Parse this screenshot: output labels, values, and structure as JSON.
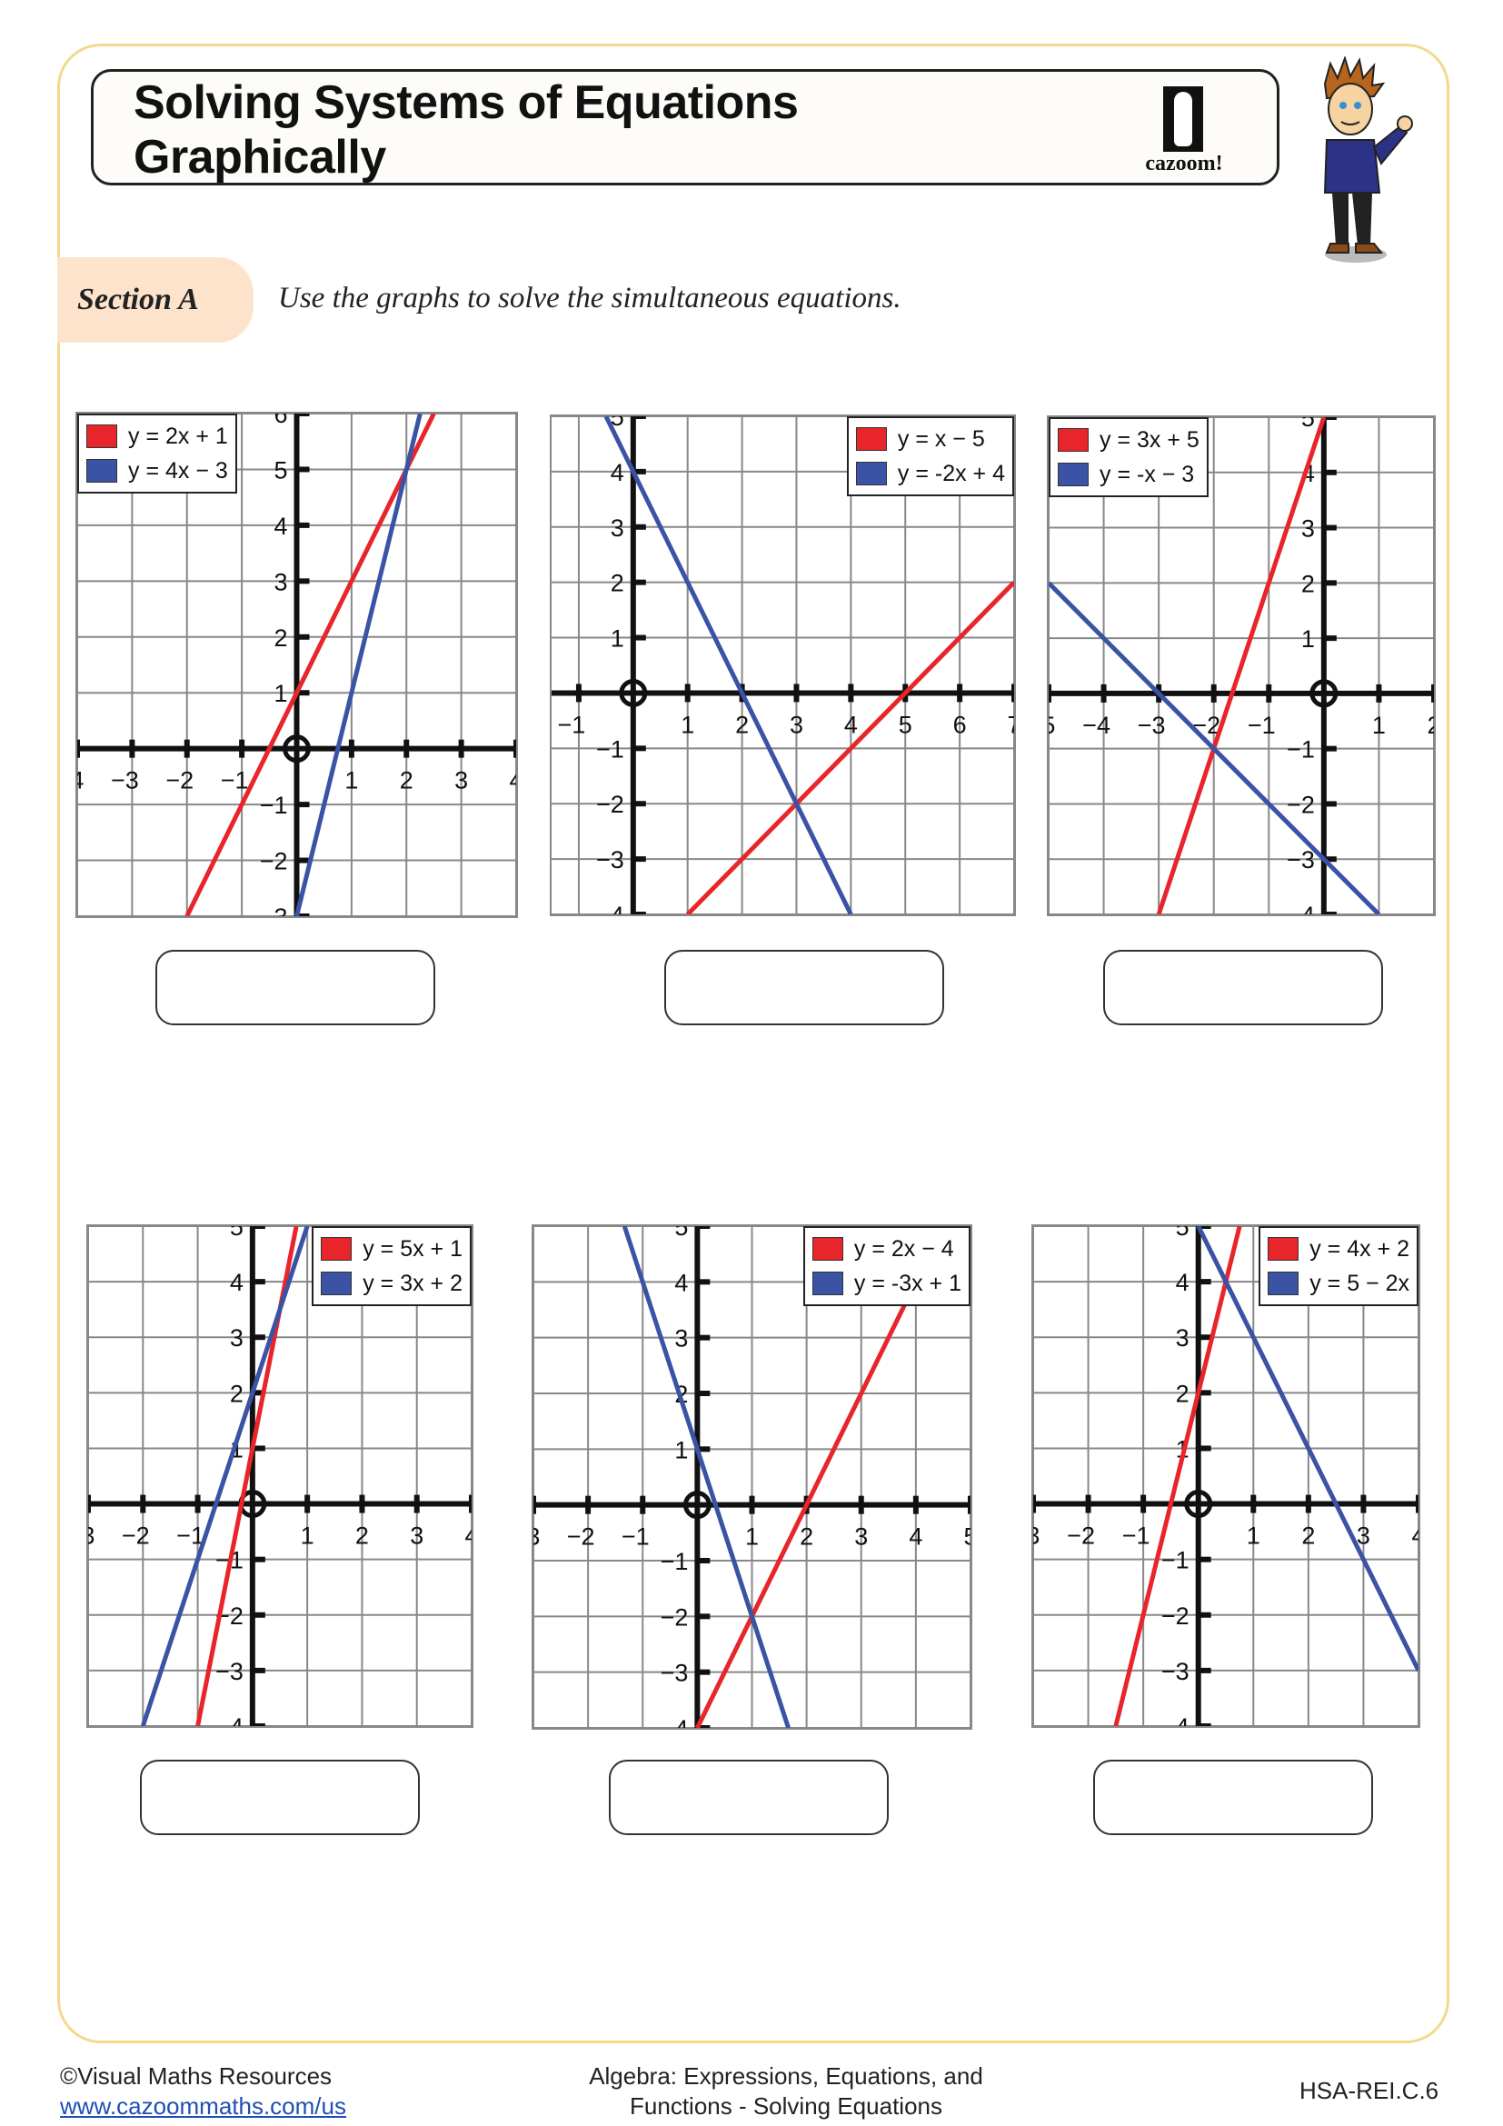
{
  "header": {
    "title_line1": "Solving Systems of Equations",
    "title_line2": "Graphically",
    "logo_text": "cazoom!"
  },
  "section": {
    "label": "Section A",
    "instruction": "Use the graphs to solve the simultaneous equations."
  },
  "colors": {
    "red": "#e8252b",
    "blue": "#3a53a4",
    "frame": "#f3d98c",
    "section_tab": "#fde3cc"
  },
  "chart_data": [
    {
      "type": "line",
      "xlim": [
        -4,
        4
      ],
      "ylim": [
        -3,
        6
      ],
      "grid": true,
      "legend": "top-left",
      "series": [
        {
          "name": "y = 2x + 1",
          "slope": 2,
          "intercept": 1,
          "color": "#e8252b"
        },
        {
          "name": "y = 4x − 3",
          "slope": 4,
          "intercept": -3,
          "color": "#3a53a4"
        }
      ]
    },
    {
      "type": "line",
      "xlim": [
        -1.5,
        7
      ],
      "ylim": [
        -4,
        5
      ],
      "grid": true,
      "legend": "top-right",
      "series": [
        {
          "name": "y = x − 5",
          "slope": 1,
          "intercept": -5,
          "color": "#e8252b"
        },
        {
          "name": "y = -2x + 4",
          "slope": -2,
          "intercept": 4,
          "color": "#3a53a4"
        }
      ]
    },
    {
      "type": "line",
      "xlim": [
        -5,
        2
      ],
      "ylim": [
        -4,
        5
      ],
      "grid": true,
      "legend": "top-left",
      "series": [
        {
          "name": "y = 3x + 5",
          "slope": 3,
          "intercept": 5,
          "color": "#e8252b"
        },
        {
          "name": "y = -x − 3",
          "slope": -1,
          "intercept": -3,
          "color": "#3a53a4"
        }
      ]
    },
    {
      "type": "line",
      "xlim": [
        -3,
        4
      ],
      "ylim": [
        -4,
        5
      ],
      "grid": true,
      "legend": "top-right",
      "series": [
        {
          "name": "y = 5x + 1",
          "slope": 5,
          "intercept": 1,
          "color": "#e8252b"
        },
        {
          "name": "y = 3x + 2",
          "slope": 3,
          "intercept": 2,
          "color": "#3a53a4"
        }
      ]
    },
    {
      "type": "line",
      "xlim": [
        -3,
        5
      ],
      "ylim": [
        -4,
        5
      ],
      "grid": true,
      "legend": "top-right",
      "series": [
        {
          "name": "y = 2x − 4",
          "slope": 2,
          "intercept": -4,
          "color": "#e8252b"
        },
        {
          "name": "y = -3x + 1",
          "slope": -3,
          "intercept": 1,
          "color": "#3a53a4"
        }
      ]
    },
    {
      "type": "line",
      "xlim": [
        -3,
        4
      ],
      "ylim": [
        -4,
        5
      ],
      "grid": true,
      "legend": "top-right",
      "series": [
        {
          "name": "y = 4x + 2",
          "slope": 4,
          "intercept": 2,
          "color": "#e8252b"
        },
        {
          "name": "y = 5 − 2x",
          "slope": -2,
          "intercept": 5,
          "color": "#3a53a4"
        }
      ]
    }
  ],
  "footer": {
    "copyright": "©Visual Maths Resources",
    "url": "www.cazoommaths.com/us",
    "topic_line1": "Algebra: Expressions, Equations, and",
    "topic_line2": "Functions - Solving Equations",
    "standard": "HSA-REI.C.6"
  }
}
